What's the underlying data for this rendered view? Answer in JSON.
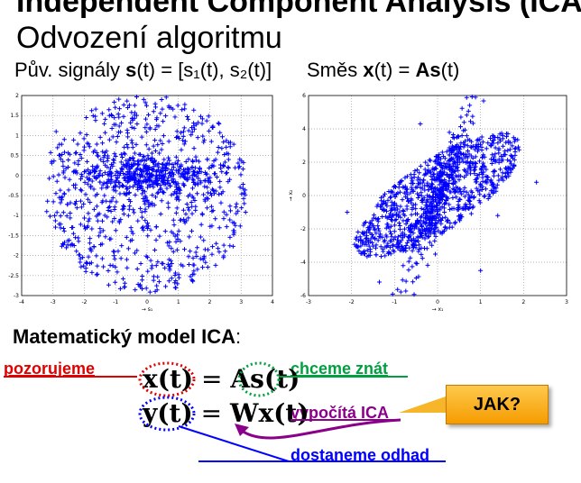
{
  "title": {
    "line1": "Independent Component Analysis (ICA)",
    "line2": "Odvození algoritmu"
  },
  "captions": {
    "left": {
      "pre": "Pův. signály ",
      "bold1": "s",
      "post": "(t) = [s₁(t), s₂(t)]"
    },
    "right": {
      "pre": "Směs ",
      "bold1": "x",
      "mid": "(t) = ",
      "bold2": "As",
      "post": "(t)"
    }
  },
  "chart_data": [
    {
      "type": "scatter",
      "title": "",
      "xlabel": "→ s₁",
      "ylabel": "",
      "xlim": [
        -4,
        4
      ],
      "ylim": [
        -3,
        2
      ],
      "x_ticks": [
        "-4",
        "-3",
        "-2",
        "-1",
        "0",
        "1",
        "2",
        "3",
        "4"
      ],
      "y_ticks": [
        "-3",
        "-2.5",
        "-2",
        "-1.5",
        "-1",
        "-0.5",
        "0",
        "0.5",
        "1",
        "1.5",
        "2"
      ],
      "grid": true,
      "marker": "+",
      "color": "#0000ff",
      "points": [
        [
          -0.4,
          0.05
        ],
        [
          1.2,
          0.1
        ],
        [
          -1.8,
          -0.3
        ],
        [
          2.6,
          0.4
        ],
        [
          0.3,
          1.4
        ],
        [
          -2.9,
          1.1
        ],
        [
          3.1,
          -0.7
        ],
        [
          -0.2,
          -2.2
        ],
        [
          1.6,
          -1.8
        ],
        [
          -1.2,
          1.5
        ],
        [
          2.1,
          1.2
        ],
        [
          -2.4,
          -1.3
        ],
        [
          0.9,
          -2.8
        ],
        [
          -3.2,
          -0.9
        ]
      ]
    },
    {
      "type": "scatter",
      "title": "",
      "xlabel": "→ x₁",
      "ylabel": "→ x₂",
      "xlim": [
        -3,
        3
      ],
      "ylim": [
        -6,
        6
      ],
      "x_ticks": [
        "-3",
        "-2",
        "-1",
        "0",
        "1",
        "2",
        "3"
      ],
      "y_ticks": [
        "-6",
        "-4",
        "-2",
        "0",
        "2",
        "4",
        "6"
      ],
      "grid": true,
      "marker": "+",
      "color": "#0000ff",
      "points": [
        [
          0.1,
          0.5
        ],
        [
          -1.5,
          -2.5
        ],
        [
          1.8,
          2.8
        ],
        [
          0.6,
          3.9
        ],
        [
          -0.8,
          -4.2
        ],
        [
          2.3,
          0.8
        ],
        [
          -2.1,
          -1.0
        ],
        [
          1.0,
          -4.5
        ],
        [
          -0.4,
          4.3
        ],
        [
          1.4,
          -1.2
        ]
      ]
    }
  ],
  "model": {
    "title": "Matematický model ICA",
    "colon": ":",
    "eq1": {
      "lhs": "x(t)",
      "equals": "=",
      "A": "A",
      "s": "s(t)"
    },
    "eq2": {
      "lhs": "y(t)",
      "equals": "=",
      "W": "W",
      "x": "x(t)"
    },
    "labels": {
      "observe": "pozorujeme",
      "want": "chceme znát",
      "computes": "vypočítá ICA",
      "estimate": "dostaneme odhad"
    },
    "jak": "JAK?",
    "colors": {
      "red": "#e00000",
      "green": "#00a040",
      "purple": "#8b008b",
      "blue": "#0000ff"
    }
  }
}
